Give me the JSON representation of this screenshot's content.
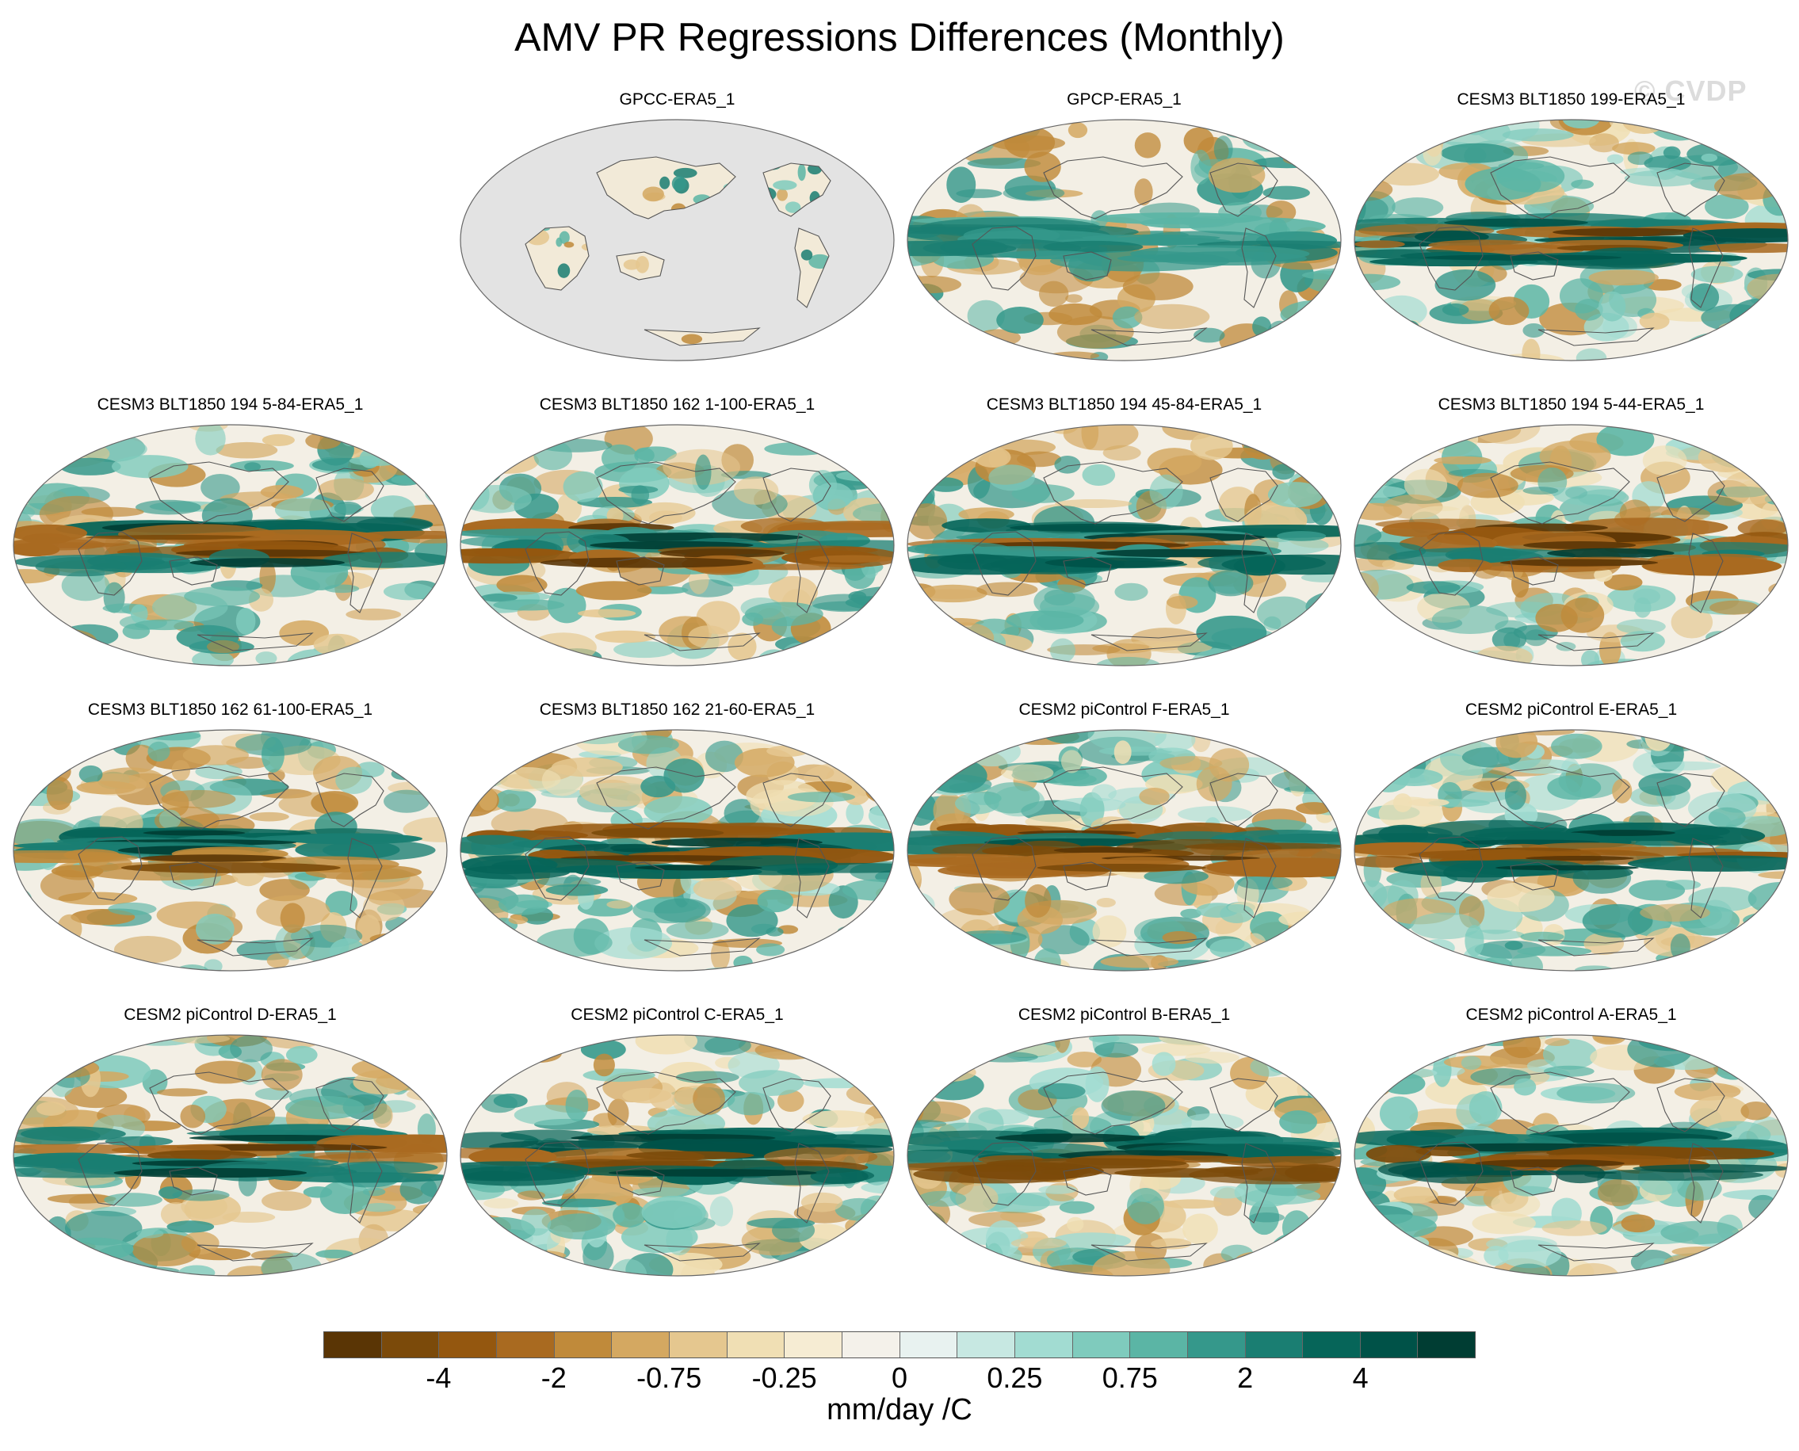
{
  "title": "AMV PR Regressions Differences (Monthly)",
  "watermark": "© CVDP",
  "panels": [
    {
      "title": "GPCC-ERA5_1",
      "style": "land-only"
    },
    {
      "title": "GPCP-ERA5_1",
      "style": "weak"
    },
    {
      "title": "CESM3 BLT1850 199-ERA5_1",
      "style": "strong"
    },
    {
      "title": "CESM3 BLT1850 194 5-84-ERA5_1",
      "style": "medium"
    },
    {
      "title": "CESM3 BLT1850 162 1-100-ERA5_1",
      "style": "medium"
    },
    {
      "title": "CESM3 BLT1850 194 45-84-ERA5_1",
      "style": "medium"
    },
    {
      "title": "CESM3 BLT1850 194 5-44-ERA5_1",
      "style": "strong"
    },
    {
      "title": "CESM3 BLT1850 162 61-100-ERA5_1",
      "style": "medium"
    },
    {
      "title": "CESM3 BLT1850 162 21-60-ERA5_1",
      "style": "strong"
    },
    {
      "title": "CESM2 piControl F-ERA5_1",
      "style": "strong"
    },
    {
      "title": "CESM2 piControl E-ERA5_1",
      "style": "strong"
    },
    {
      "title": "CESM2 piControl D-ERA5_1",
      "style": "medium"
    },
    {
      "title": "CESM2 piControl C-ERA5_1",
      "style": "strong"
    },
    {
      "title": "CESM2 piControl B-ERA5_1",
      "style": "strong"
    },
    {
      "title": "CESM2 piControl A-ERA5_1",
      "style": "strong"
    }
  ],
  "colorbar": {
    "colors": [
      "#5a3505",
      "#7b4a0a",
      "#94570f",
      "#a96a20",
      "#c08a3a",
      "#d4a861",
      "#e5c78f",
      "#f0dfb4",
      "#f6ecd3",
      "#f4f1ea",
      "#e8f2f0",
      "#c7e8e2",
      "#a2dcd2",
      "#7fcbbd",
      "#5bb5a5",
      "#35988b",
      "#1a7e72",
      "#066559",
      "#005248",
      "#003d33"
    ],
    "tick_labels": [
      "-4",
      "-2",
      "-0.75",
      "-0.25",
      "0",
      "0.25",
      "0.75",
      "2",
      "4"
    ],
    "tick_edges": [
      2,
      4,
      6,
      8,
      10,
      12,
      14,
      16,
      18
    ],
    "units": "mm/day /C"
  }
}
